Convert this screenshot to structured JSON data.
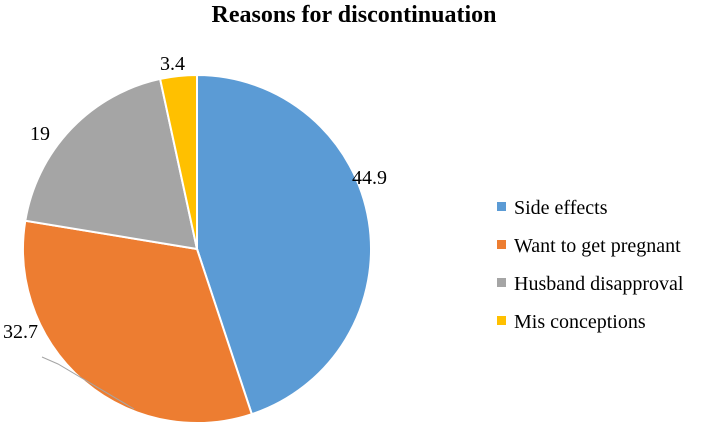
{
  "chart_data": {
    "type": "pie",
    "title": "Reasons for discontinuation",
    "categories": [
      "Side effects",
      "Want to get pregnant",
      "Husband disapproval",
      "Mis conceptions"
    ],
    "values": [
      44.9,
      32.7,
      19,
      3.4
    ],
    "value_labels": [
      "44.9",
      "32.7",
      "19",
      "3.4"
    ],
    "colors": [
      "#5B9BD5",
      "#ED7D31",
      "#A5A5A5",
      "#FFC000"
    ],
    "start": "12 o'clock",
    "direction": "clockwise",
    "legend_position": "right"
  }
}
